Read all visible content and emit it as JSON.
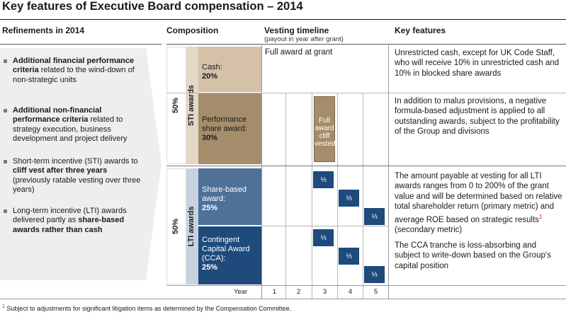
{
  "title": "Key features of Executive Board compensation – 2014",
  "headers": {
    "refinements": "Refinements in 2014",
    "composition": "Composition",
    "vesting": "Vesting timeline",
    "vesting_sub": "(payout in year after grant)",
    "key_features": "Key features"
  },
  "refinements": [
    {
      "bold": "Additional financial performance criteria",
      "rest": " related to the wind-down of non-strategic units"
    },
    {
      "bold": "Additional non-financial performance criteria",
      "rest": " related to strategy execution, business development and project delivery"
    },
    {
      "pre": "Short-term incentive (STI) awards to ",
      "bold": "cliff vest after three years",
      "rest": " (previously ratable vesting over three years)"
    },
    {
      "pre": "Long-term incentive (LTI) awards delivered partly as ",
      "bold": "share-based awards rather than cash",
      "rest": ""
    }
  ],
  "sti": {
    "pct": "50%",
    "label": "STI awards",
    "cash_label": "Cash:",
    "cash_pct": "20%",
    "perf_label": "Performance share award:",
    "perf_pct": "30%",
    "full_award_grant": "Full award at grant",
    "cliff_vested": "Full award cliff vested"
  },
  "lti": {
    "pct": "50%",
    "label": "LTI awards",
    "share_label": "Share-based award:",
    "share_pct": "25%",
    "cca_label": "Contingent Capital Award (CCA):",
    "cca_pct": "25%",
    "third": "⅓"
  },
  "years": {
    "label": "Year",
    "values": [
      "1",
      "2",
      "3",
      "4",
      "5"
    ]
  },
  "features": {
    "cash": "Unrestricted cash, except for UK Code Staff, who will receive 10% in unrestricted cash and 10% in blocked share awards",
    "perf": "In addition to malus provisions, a negative formula-based adjustment is applied to all outstanding awards, subject to the profitability of the Group and divisions",
    "lti": "The amount payable at vesting for all LTI awards ranges from 0 to 200% of the grant value and will be determined based on relative total shareholder return (primary metric) and average ROE based on strategic results",
    "lti_tail": "(secondary metric)",
    "cca": "The CCA tranche is loss-absorbing and subject to write-down based on the Group's capital position"
  },
  "footnote": {
    "mark": "1",
    "text": "Subject to adjustments for significant litigation items as determined by the Compensation Committee."
  },
  "colors": {
    "cash": "#d4c1a8",
    "perf": "#a58c6a",
    "sti_side": "#e3d7c6",
    "lti_side": "#c6d2e2",
    "share": "#4e7198",
    "cca": "#1e4a7c",
    "panel": "#eeeeee"
  }
}
